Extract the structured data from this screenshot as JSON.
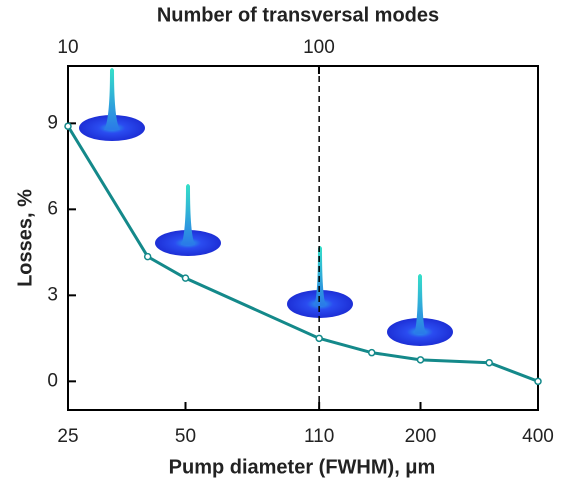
{
  "chart_data": {
    "type": "line",
    "top_axis_label": "Number of transversal modes",
    "x_label": "Pump diameter (FWHM), μm",
    "y_label": "Losses, %",
    "xscale": "log",
    "x": [
      25,
      40,
      50,
      110,
      150,
      200,
      300,
      400
    ],
    "series": [
      {
        "name": "Losses",
        "color": "#14898a",
        "values": [
          8.9,
          4.35,
          3.6,
          1.5,
          1.0,
          0.75,
          0.65,
          0.0
        ]
      }
    ],
    "xlim": [
      25,
      400
    ],
    "xticks": [
      25,
      50,
      110,
      200,
      400
    ],
    "ylim": [
      -1,
      11
    ],
    "yticks": [
      0,
      3,
      6,
      9
    ],
    "x2scale": "log",
    "x2lim": [
      10,
      746
    ],
    "x2ticks": [
      10,
      100
    ],
    "vline": 110
  }
}
